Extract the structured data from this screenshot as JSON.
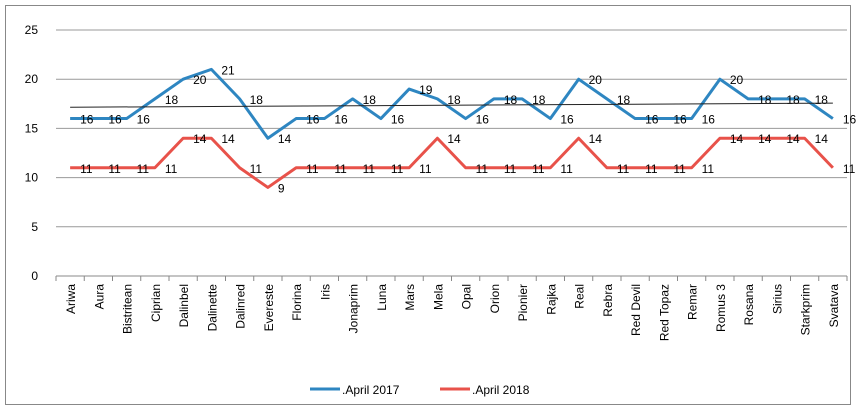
{
  "chart_data": {
    "type": "line",
    "categories": [
      "Ariwa",
      "Aura",
      "Bistritean",
      "Ciprian",
      "Dalinbel",
      "Dalinette",
      "Dalinred",
      "Evereste",
      "Florina",
      "Iris",
      "Jonaprim",
      "Luna",
      "Mars",
      "Mela",
      "Opal",
      "Orion",
      "Pionier",
      "Rajka",
      "Real",
      "Rebra",
      "Red Devil",
      "Red Topaz",
      "Remar",
      "Romus 3",
      "Rosana",
      "Sirius",
      "Starkprim",
      "Svatava"
    ],
    "series": [
      {
        "name": ".April 2017",
        "color": "#2e86c1",
        "values": [
          16,
          16,
          16,
          18,
          20,
          21,
          18,
          14,
          16,
          16,
          18,
          16,
          19,
          18,
          16,
          18,
          18,
          16,
          20,
          18,
          16,
          16,
          16,
          20,
          18,
          18,
          18,
          16
        ]
      },
      {
        "name": ".April 2018",
        "color": "#e8524a",
        "values": [
          11,
          11,
          11,
          11,
          14,
          14,
          11,
          9,
          11,
          11,
          11,
          11,
          11,
          14,
          11,
          11,
          11,
          11,
          14,
          11,
          11,
          11,
          11,
          14,
          14,
          14,
          14,
          11
        ]
      }
    ],
    "ylim": [
      0,
      25
    ],
    "yticks": [
      0,
      5,
      10,
      15,
      20,
      25
    ],
    "grid": true,
    "legend": "bottom",
    "trendline_series": 0
  }
}
